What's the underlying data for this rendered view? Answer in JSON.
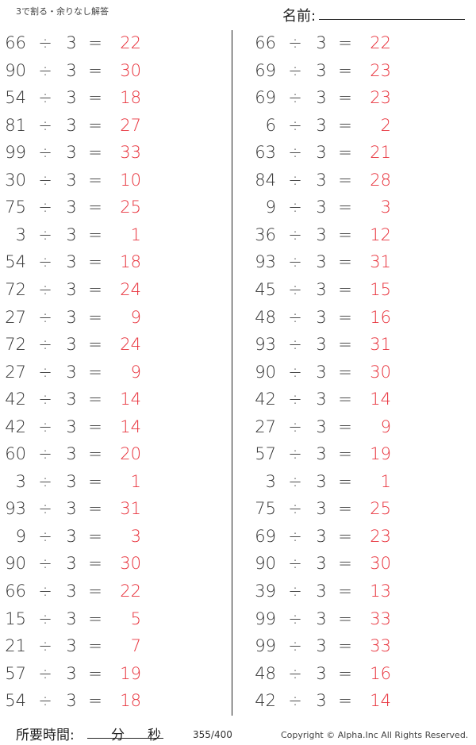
{
  "header": {
    "title": "3で割る・余りなし解答",
    "name_label": "名前:"
  },
  "symbols": {
    "divide": "÷",
    "equals": "="
  },
  "colors": {
    "answer": "#e8323c"
  },
  "left": [
    [
      "66",
      "3",
      "22"
    ],
    [
      "90",
      "3",
      "30"
    ],
    [
      "54",
      "3",
      "18"
    ],
    [
      "81",
      "3",
      "27"
    ],
    [
      "99",
      "3",
      "33"
    ],
    [
      "30",
      "3",
      "10"
    ],
    [
      "75",
      "3",
      "25"
    ],
    [
      "3",
      "3",
      "1"
    ],
    [
      "54",
      "3",
      "18"
    ],
    [
      "72",
      "3",
      "24"
    ],
    [
      "27",
      "3",
      "9"
    ],
    [
      "72",
      "3",
      "24"
    ],
    [
      "27",
      "3",
      "9"
    ],
    [
      "42",
      "3",
      "14"
    ],
    [
      "42",
      "3",
      "14"
    ],
    [
      "60",
      "3",
      "20"
    ],
    [
      "3",
      "3",
      "1"
    ],
    [
      "93",
      "3",
      "31"
    ],
    [
      "9",
      "3",
      "3"
    ],
    [
      "90",
      "3",
      "30"
    ],
    [
      "66",
      "3",
      "22"
    ],
    [
      "15",
      "3",
      "5"
    ],
    [
      "21",
      "3",
      "7"
    ],
    [
      "57",
      "3",
      "19"
    ],
    [
      "54",
      "3",
      "18"
    ]
  ],
  "right": [
    [
      "66",
      "3",
      "22"
    ],
    [
      "69",
      "3",
      "23"
    ],
    [
      "69",
      "3",
      "23"
    ],
    [
      "6",
      "3",
      "2"
    ],
    [
      "63",
      "3",
      "21"
    ],
    [
      "84",
      "3",
      "28"
    ],
    [
      "9",
      "3",
      "3"
    ],
    [
      "36",
      "3",
      "12"
    ],
    [
      "93",
      "3",
      "31"
    ],
    [
      "45",
      "3",
      "15"
    ],
    [
      "48",
      "3",
      "16"
    ],
    [
      "93",
      "3",
      "31"
    ],
    [
      "90",
      "3",
      "30"
    ],
    [
      "42",
      "3",
      "14"
    ],
    [
      "27",
      "3",
      "9"
    ],
    [
      "57",
      "3",
      "19"
    ],
    [
      "3",
      "3",
      "1"
    ],
    [
      "75",
      "3",
      "25"
    ],
    [
      "69",
      "3",
      "23"
    ],
    [
      "90",
      "3",
      "30"
    ],
    [
      "39",
      "3",
      "13"
    ],
    [
      "99",
      "3",
      "33"
    ],
    [
      "99",
      "3",
      "33"
    ],
    [
      "48",
      "3",
      "16"
    ],
    [
      "42",
      "3",
      "14"
    ]
  ],
  "footer": {
    "time_label": "所要時間:",
    "minutes": "分",
    "seconds": "秒",
    "page": "355/400",
    "copyright": "Copyright ©  Alpha.Inc All Rights Reserved."
  }
}
